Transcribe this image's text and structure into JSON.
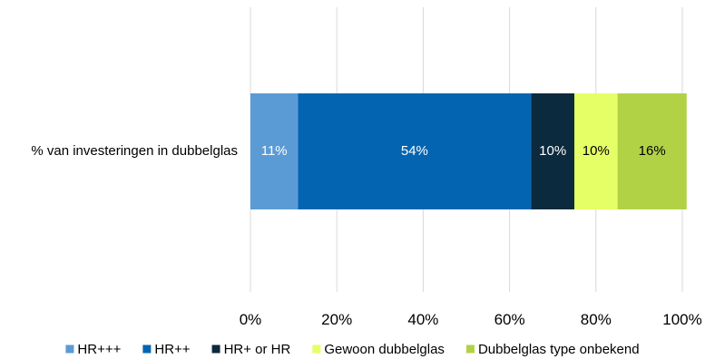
{
  "chart_data": {
    "type": "bar",
    "orientation": "horizontal",
    "stacked": "percent",
    "categories": [
      "% van investeringen in dubbelglas"
    ],
    "series": [
      {
        "name": "HR+++",
        "values": [
          11
        ],
        "color": "#5b9bd5",
        "label": "11%",
        "label_color": "#ffffff"
      },
      {
        "name": "HR++",
        "values": [
          54
        ],
        "color": "#0365b1",
        "label": "54%",
        "label_color": "#ffffff"
      },
      {
        "name": "HR+ or HR",
        "values": [
          10
        ],
        "color": "#0c2a3e",
        "label": "10%",
        "label_color": "#ffffff"
      },
      {
        "name": "Gewoon dubbelglas",
        "values": [
          10
        ],
        "color": "#e5ff66",
        "label": "10%",
        "label_color": "#000000"
      },
      {
        "name": "Dubbelglas type onbekend",
        "values": [
          16
        ],
        "color": "#b2d246",
        "label": "16%",
        "label_color": "#000000"
      }
    ],
    "xlim": [
      0,
      100
    ],
    "xticks": [
      "0%",
      "20%",
      "40%",
      "60%",
      "80%",
      "100%"
    ],
    "grid": true,
    "gridline_color": "#d9d9d9",
    "legend_position": "bottom",
    "title": "",
    "xlabel": "",
    "ylabel": ""
  }
}
